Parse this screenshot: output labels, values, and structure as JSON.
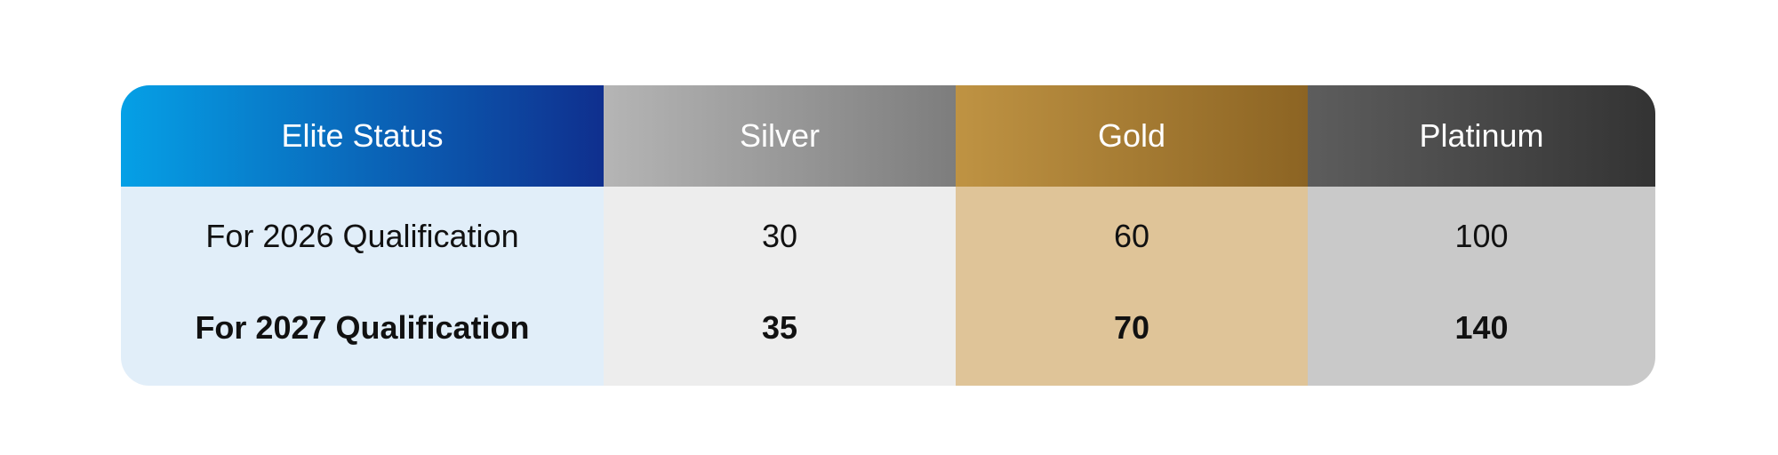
{
  "colors": {
    "elite": "#0f2f8e",
    "silver": "#9a9a9a",
    "gold": "#a77b33",
    "platinum": "#444444"
  },
  "table": {
    "headers": [
      "Elite Status",
      "Silver",
      "Gold",
      "Platinum"
    ],
    "rows": [
      {
        "label": "For 2026 Qualification",
        "values": [
          "30",
          "60",
          "100"
        ]
      },
      {
        "label": "For 2027 Qualification",
        "values": [
          "35",
          "70",
          "140"
        ]
      }
    ]
  }
}
